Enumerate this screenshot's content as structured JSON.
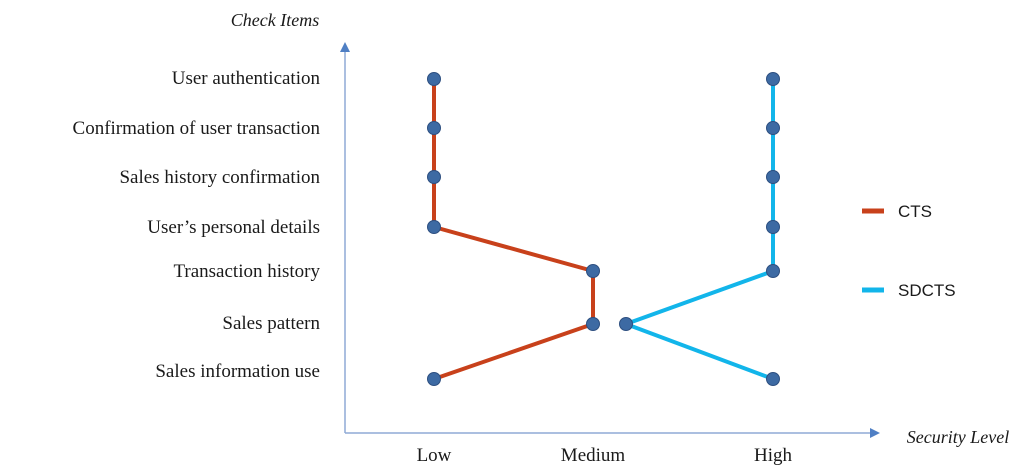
{
  "chart_data": {
    "type": "line",
    "ylabel": "Check Items",
    "xlabel": "Security Level",
    "x_categories": [
      "Low",
      "Medium",
      "High"
    ],
    "y_categories": [
      "User authentication",
      "Confirmation of user transaction",
      "Sales history confirmation",
      "User’s personal details",
      "Transaction history",
      "Sales pattern",
      "Sales information use"
    ],
    "series": [
      {
        "name": "CTS",
        "color": "#c8411b",
        "values": [
          "Low",
          "Low",
          "Low",
          "Low",
          "Medium",
          "Medium",
          "Low"
        ]
      },
      {
        "name": "SDCTS",
        "color": "#12b5ea",
        "values": [
          "High",
          "High",
          "High",
          "High",
          "High",
          "Medium",
          "High"
        ]
      }
    ],
    "marker_color": "#3d6aa3",
    "axis_color": "#8faad6",
    "grid": false,
    "legend_position": "right"
  }
}
